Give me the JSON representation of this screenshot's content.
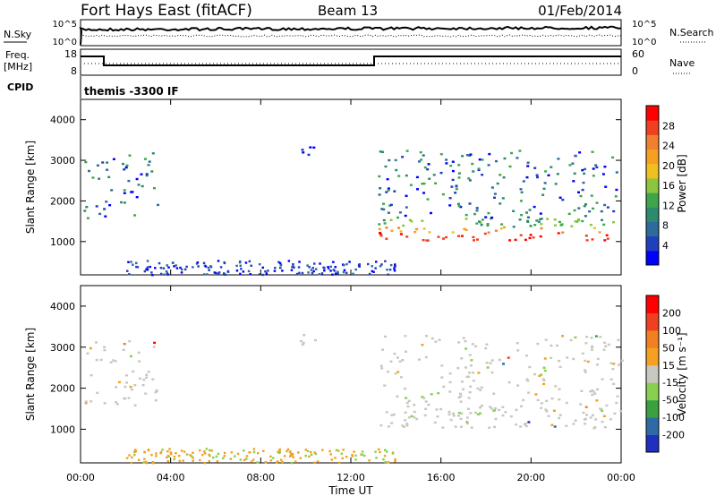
{
  "header": {
    "station": "Fort Hays East (fitACF)",
    "beam": "Beam 13",
    "date": "01/Feb/2014"
  },
  "panels": {
    "nsky_label": "N.Sky",
    "nsky_ticks": [
      "10^5",
      "10^0"
    ],
    "nsearch_label": "N.Search",
    "nsearch_ticks": [
      "10^5",
      "10^0"
    ],
    "freq_label": "Freq.",
    "freq_unit": "[MHz]",
    "freq_ticks": [
      "18",
      "8"
    ],
    "nave_label": "Nave",
    "nave_ticks": [
      "60",
      "0"
    ],
    "cpid_label": "CPID",
    "cpid_value": "themis -3300 IF"
  },
  "chart_data": [
    {
      "type": "heatmap",
      "name": "power",
      "ylabel": "Slant Range [km]",
      "xlabel": "",
      "yticks": [
        "4000",
        "3000",
        "2000",
        "1000"
      ],
      "ylim": [
        180,
        4500
      ],
      "colorbar": {
        "label": "Power [dB]",
        "ticks": [
          "28",
          "24",
          "20",
          "16",
          "12",
          "8",
          "4"
        ],
        "colors": [
          "#0000ff",
          "#1f3fbf",
          "#2e6a9a",
          "#2e8a6e",
          "#3ea64a",
          "#8cc63f",
          "#f0c020",
          "#f5a020",
          "#f08030",
          "#f04020",
          "#ff0000"
        ]
      },
      "regions": [
        {
          "t0": 0.1,
          "t1": 3.4,
          "r0": 1600,
          "r1": 3200,
          "level": "medium"
        },
        {
          "t0": 9.6,
          "t1": 10.4,
          "r0": 3000,
          "r1": 3400,
          "level": "low"
        },
        {
          "t0": 13.2,
          "t1": 24.0,
          "r0": 1050,
          "r1": 1600,
          "level": "high"
        },
        {
          "t0": 13.2,
          "t1": 24.0,
          "r0": 1600,
          "r1": 3300,
          "level": "medium"
        }
      ]
    },
    {
      "type": "heatmap",
      "name": "velocity",
      "ylabel": "Slant Range [km]",
      "xlabel": "Time UT",
      "yticks": [
        "4000",
        "3000",
        "2000",
        "1000"
      ],
      "ylim": [
        180,
        4500
      ],
      "colorbar": {
        "label": "Velocity [m s⁻¹]",
        "ticks": [
          "200",
          "100",
          "50",
          "15",
          "-15",
          "-50",
          "-100",
          "-200"
        ],
        "colors": [
          "#1f2fbf",
          "#2e6aa8",
          "#3aa040",
          "#8ad050",
          "#c8c8c0",
          "#f5a020",
          "#f08020",
          "#f04020",
          "#ff0000"
        ]
      },
      "xticks": [
        "00:00",
        "04:00",
        "08:00",
        "12:00",
        "16:00",
        "20:00",
        "00:00"
      ],
      "xlim": [
        0,
        24
      ]
    }
  ]
}
